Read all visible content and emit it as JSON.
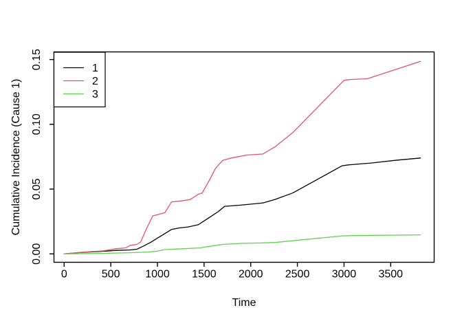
{
  "figure": {
    "background": "#ffffff",
    "axis_color": "#000000",
    "text_color": "#000000"
  },
  "chart_data": {
    "type": "line",
    "title": "",
    "xlabel": "Time",
    "ylabel": "Cumulative Incidence (Cause 1)",
    "xlim": [
      -109,
      3966
    ],
    "ylim": [
      -0.0065,
      0.1559
    ],
    "grid": false,
    "xticks": [
      {
        "value": 0,
        "label": "0"
      },
      {
        "value": 500,
        "label": "500"
      },
      {
        "value": 1000,
        "label": "1000"
      },
      {
        "value": 1500,
        "label": "1500"
      },
      {
        "value": 2000,
        "label": "2000"
      },
      {
        "value": 2500,
        "label": "2500"
      },
      {
        "value": 3000,
        "label": "3000"
      },
      {
        "value": 3500,
        "label": "3500"
      }
    ],
    "yticks": [
      {
        "value": 0,
        "label": "0.00"
      },
      {
        "value": 0.05,
        "label": "0.05"
      },
      {
        "value": 0.1,
        "label": "0.10"
      },
      {
        "value": 0.15,
        "label": "0.15"
      }
    ],
    "legend": {
      "position": "topleft",
      "entries": [
        {
          "label": "1",
          "color": "#000000"
        },
        {
          "label": "2",
          "color": "#DF536B"
        },
        {
          "label": "3",
          "color": "#61D04F"
        }
      ]
    },
    "series": [
      {
        "name": "1",
        "color": "#000000",
        "points": [
          [
            0,
            0
          ],
          [
            160,
            0.001
          ],
          [
            420,
            0.002
          ],
          [
            560,
            0.0027
          ],
          [
            700,
            0.003
          ],
          [
            780,
            0.0036
          ],
          [
            850,
            0.006
          ],
          [
            930,
            0.009
          ],
          [
            1000,
            0.0122
          ],
          [
            1060,
            0.0148
          ],
          [
            1150,
            0.0188
          ],
          [
            1230,
            0.02
          ],
          [
            1330,
            0.0208
          ],
          [
            1440,
            0.0226
          ],
          [
            1570,
            0.0287
          ],
          [
            1650,
            0.0325
          ],
          [
            1720,
            0.0367
          ],
          [
            1890,
            0.0376
          ],
          [
            2130,
            0.0393
          ],
          [
            2260,
            0.042
          ],
          [
            2450,
            0.047
          ],
          [
            2980,
            0.068
          ],
          [
            3050,
            0.0687
          ],
          [
            3300,
            0.0702
          ],
          [
            3550,
            0.0722
          ],
          [
            3820,
            0.074
          ]
        ]
      },
      {
        "name": "2",
        "color": "#DF536B",
        "points": [
          [
            0,
            0
          ],
          [
            200,
            0.0013
          ],
          [
            420,
            0.0023
          ],
          [
            560,
            0.004
          ],
          [
            660,
            0.0046
          ],
          [
            710,
            0.0066
          ],
          [
            780,
            0.0073
          ],
          [
            820,
            0.0092
          ],
          [
            880,
            0.019
          ],
          [
            950,
            0.0293
          ],
          [
            1020,
            0.0306
          ],
          [
            1080,
            0.0318
          ],
          [
            1150,
            0.0401
          ],
          [
            1260,
            0.0409
          ],
          [
            1350,
            0.0419
          ],
          [
            1440,
            0.0461
          ],
          [
            1480,
            0.047
          ],
          [
            1570,
            0.0585
          ],
          [
            1620,
            0.0658
          ],
          [
            1700,
            0.0722
          ],
          [
            1780,
            0.0738
          ],
          [
            1960,
            0.0763
          ],
          [
            2130,
            0.0771
          ],
          [
            2260,
            0.0826
          ],
          [
            2450,
            0.0936
          ],
          [
            3000,
            0.134
          ],
          [
            3070,
            0.1346
          ],
          [
            3250,
            0.1352
          ],
          [
            3820,
            0.1486
          ]
        ]
      },
      {
        "name": "3",
        "color": "#61D04F",
        "points": [
          [
            0,
            0
          ],
          [
            420,
            0.0004
          ],
          [
            700,
            0.0009
          ],
          [
            900,
            0.0014
          ],
          [
            1000,
            0.0021
          ],
          [
            1080,
            0.0033
          ],
          [
            1200,
            0.0037
          ],
          [
            1450,
            0.0046
          ],
          [
            1560,
            0.0058
          ],
          [
            1700,
            0.0073
          ],
          [
            1900,
            0.0081
          ],
          [
            2100,
            0.0084
          ],
          [
            2260,
            0.0088
          ],
          [
            2980,
            0.0139
          ],
          [
            3100,
            0.0141
          ],
          [
            3820,
            0.0147
          ]
        ]
      }
    ]
  }
}
